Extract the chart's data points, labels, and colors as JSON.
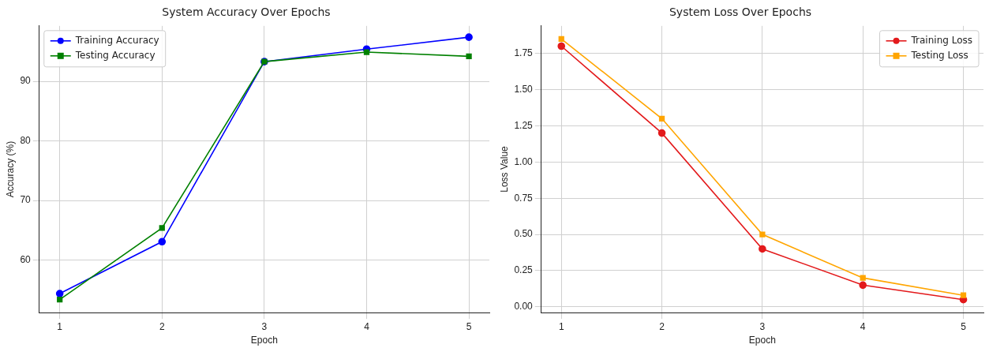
{
  "chart_data": [
    {
      "type": "line",
      "title": "System Accuracy Over Epochs",
      "xlabel": "Epoch",
      "ylabel": "Accuracy (%)",
      "x": [
        1,
        2,
        3,
        4,
        5
      ],
      "xlim": [
        0.8,
        5.2
      ],
      "xticks": [
        1,
        2,
        3,
        4,
        5
      ],
      "ylim": [
        51.2,
        99.3
      ],
      "yticks": [
        60,
        70,
        80,
        90
      ],
      "grid": true,
      "legend": "top left",
      "series": [
        {
          "name": "Training Accuracy",
          "color": "#0000ff",
          "marker": "circle",
          "values": [
            54.4,
            63.1,
            93.3,
            95.4,
            97.4
          ]
        },
        {
          "name": "Testing Accuracy",
          "color": "#008000",
          "marker": "square",
          "values": [
            53.4,
            65.4,
            93.3,
            94.9,
            94.2
          ]
        }
      ]
    },
    {
      "type": "line",
      "title": "System Loss Over Epochs",
      "xlabel": "Epoch",
      "ylabel": "Loss Value",
      "x": [
        1,
        2,
        3,
        4,
        5
      ],
      "xlim": [
        0.8,
        5.2
      ],
      "xticks": [
        1,
        2,
        3,
        4,
        5
      ],
      "ylim": [
        -0.04,
        1.94
      ],
      "yticks": [
        {
          "value": 0,
          "label": "0.00"
        },
        {
          "value": 0.25,
          "label": "0.25"
        },
        {
          "value": 0.5,
          "label": "0.50"
        },
        {
          "value": 0.75,
          "label": "0.75"
        },
        {
          "value": 1,
          "label": "1.00"
        },
        {
          "value": 1.25,
          "label": "1.25"
        },
        {
          "value": 1.5,
          "label": "1.50"
        },
        {
          "value": 1.75,
          "label": "1.75"
        }
      ],
      "grid": true,
      "legend": "top right",
      "series": [
        {
          "name": "Training Loss",
          "color": "#e31a1c",
          "marker": "circle",
          "values": [
            1.8,
            1.2,
            0.4,
            0.15,
            0.05
          ]
        },
        {
          "name": "Testing Loss",
          "color": "#ffa500",
          "marker": "square",
          "values": [
            1.85,
            1.3,
            0.5,
            0.2,
            0.08
          ]
        }
      ]
    }
  ]
}
